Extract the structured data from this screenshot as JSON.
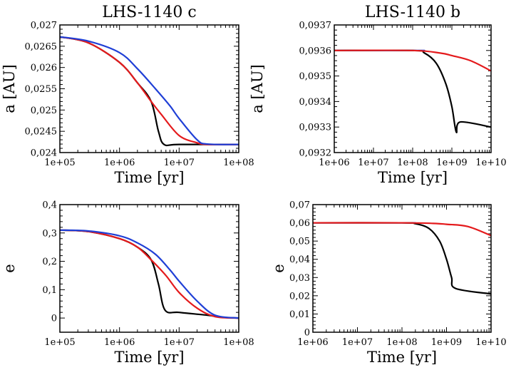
{
  "chart_data": [
    {
      "type": "line",
      "title": "LHS-1140 c",
      "xlabel": "Time [yr]",
      "ylabel": "a [AU]",
      "xscale": "log",
      "xlim": [
        100000,
        100000000
      ],
      "ylim": [
        0.024,
        0.027
      ],
      "xticks": [
        "1e+05",
        "1e+06",
        "1e+07",
        "1e+08"
      ],
      "yticks": [
        "0,024",
        "0,0245",
        "0,025",
        "0,0255",
        "0,026",
        "0,0265",
        "0,027"
      ],
      "colors": {
        "black": "#000000",
        "red": "#e41a1c",
        "blue": "#1f3fd6"
      },
      "series": [
        {
          "name": "black",
          "x": [
            100000,
            300000,
            1000000,
            2000000,
            3400000,
            4500000,
            5600000,
            10000000,
            100000000
          ],
          "y": [
            0.02672,
            0.02658,
            0.02612,
            0.02564,
            0.0252,
            0.0245,
            0.02419,
            0.02419,
            0.02419
          ]
        },
        {
          "name": "red",
          "x": [
            100000,
            300000,
            1000000,
            2000000,
            3400000,
            5000000,
            10000000,
            20000000,
            30000000,
            100000000
          ],
          "y": [
            0.02672,
            0.02658,
            0.02612,
            0.02564,
            0.0252,
            0.0249,
            0.0244,
            0.02423,
            0.02419,
            0.02419
          ]
        },
        {
          "name": "blue",
          "x": [
            100000,
            300000,
            1000000,
            2000000,
            4000000,
            7000000,
            10000000,
            20000000,
            30000000,
            100000000
          ],
          "y": [
            0.02672,
            0.02662,
            0.02635,
            0.02597,
            0.0255,
            0.0251,
            0.0248,
            0.0243,
            0.0242,
            0.02419
          ]
        }
      ]
    },
    {
      "type": "line",
      "title": "LHS-1140 b",
      "xlabel": "Time [yr]",
      "ylabel": "a [AU]",
      "xscale": "log",
      "xlim": [
        1000000,
        10000000000
      ],
      "ylim": [
        0.0932,
        0.0937
      ],
      "xticks": [
        "1e+06",
        "1e+07",
        "1e+08",
        "1e+09",
        "1e+10"
      ],
      "yticks": [
        "0,0932",
        "0,0933",
        "0,0934",
        "0,0935",
        "0,0936",
        "0,0937"
      ],
      "colors": {
        "black": "#000000",
        "red": "#e41a1c",
        "blue": "#1f3fd6"
      },
      "series": [
        {
          "name": "blue",
          "x": [
            1000000,
            100000000,
            200000000
          ],
          "y": [
            0.0936,
            0.0936,
            0.0936
          ]
        },
        {
          "name": "black",
          "x": [
            1000000,
            100000000,
            200000000,
            400000000,
            700000000,
            1000000000,
            1300000000,
            1650000000,
            10000000000
          ],
          "y": [
            0.0936,
            0.0936,
            0.09359,
            0.09355,
            0.09347,
            0.09338,
            0.09328,
            0.09332,
            0.0933
          ]
        },
        {
          "name": "red",
          "x": [
            1000000,
            100000000,
            500000000,
            1000000000,
            3000000000,
            10000000000
          ],
          "y": [
            0.0936,
            0.0936,
            0.09359,
            0.09358,
            0.09356,
            0.09352
          ]
        }
      ]
    },
    {
      "type": "line",
      "title": "",
      "xlabel": "Time [yr]",
      "ylabel": "e",
      "xscale": "log",
      "xlim": [
        100000,
        100000000
      ],
      "ylim": [
        -0.05,
        0.4
      ],
      "xticks": [
        "1e+05",
        "1e+06",
        "1e+07",
        "1e+08"
      ],
      "yticks": [
        "0",
        "0,1",
        "0,2",
        "0,3",
        "0,4"
      ],
      "colors": {
        "black": "#000000",
        "red": "#e41a1c",
        "blue": "#1f3fd6"
      },
      "series": [
        {
          "name": "black",
          "x": [
            100000,
            300000,
            1000000,
            2000000,
            3400000,
            4500000,
            5800000,
            10000000,
            30000000,
            50000000,
            100000000
          ],
          "y": [
            0.31,
            0.305,
            0.28,
            0.25,
            0.205,
            0.12,
            0.028,
            0.02,
            0.01,
            0.003,
            0.0
          ]
        },
        {
          "name": "red",
          "x": [
            100000,
            300000,
            1000000,
            2000000,
            3400000,
            6000000,
            10000000,
            20000000,
            40000000,
            100000000
          ],
          "y": [
            0.31,
            0.305,
            0.28,
            0.25,
            0.205,
            0.15,
            0.09,
            0.035,
            0.005,
            0.0
          ]
        },
        {
          "name": "blue",
          "x": [
            100000,
            300000,
            1000000,
            2000000,
            4000000,
            7000000,
            10000000,
            20000000,
            40000000,
            100000000
          ],
          "y": [
            0.31,
            0.307,
            0.29,
            0.265,
            0.225,
            0.17,
            0.13,
            0.06,
            0.01,
            0.0
          ]
        }
      ]
    },
    {
      "type": "line",
      "title": "",
      "xlabel": "Time [yr]",
      "ylabel": "e",
      "xscale": "log",
      "xlim": [
        1000000,
        10000000000
      ],
      "ylim": [
        0,
        0.07
      ],
      "xticks": [
        "1e+06",
        "1e+07",
        "1e+08",
        "1e+09",
        "1e+10"
      ],
      "yticks": [
        "0",
        "0,01",
        "0,02",
        "0,03",
        "0,04",
        "0,05",
        "0,06",
        "0,07"
      ],
      "colors": {
        "black": "#000000",
        "red": "#e41a1c",
        "blue": "#1f3fd6"
      },
      "series": [
        {
          "name": "blue",
          "x": [
            1000000,
            100000000,
            200000000
          ],
          "y": [
            0.06,
            0.06,
            0.06
          ]
        },
        {
          "name": "black",
          "x": [
            1000000,
            100000000,
            200000000,
            400000000,
            700000000,
            1000000000,
            1300000000,
            1600000000,
            10000000000
          ],
          "y": [
            0.06,
            0.06,
            0.0595,
            0.057,
            0.05,
            0.04,
            0.03,
            0.024,
            0.021
          ]
        },
        {
          "name": "red",
          "x": [
            1000000,
            100000000,
            500000000,
            1000000000,
            3000000000,
            10000000000
          ],
          "y": [
            0.06,
            0.06,
            0.0597,
            0.0592,
            0.058,
            0.053
          ]
        }
      ]
    }
  ]
}
